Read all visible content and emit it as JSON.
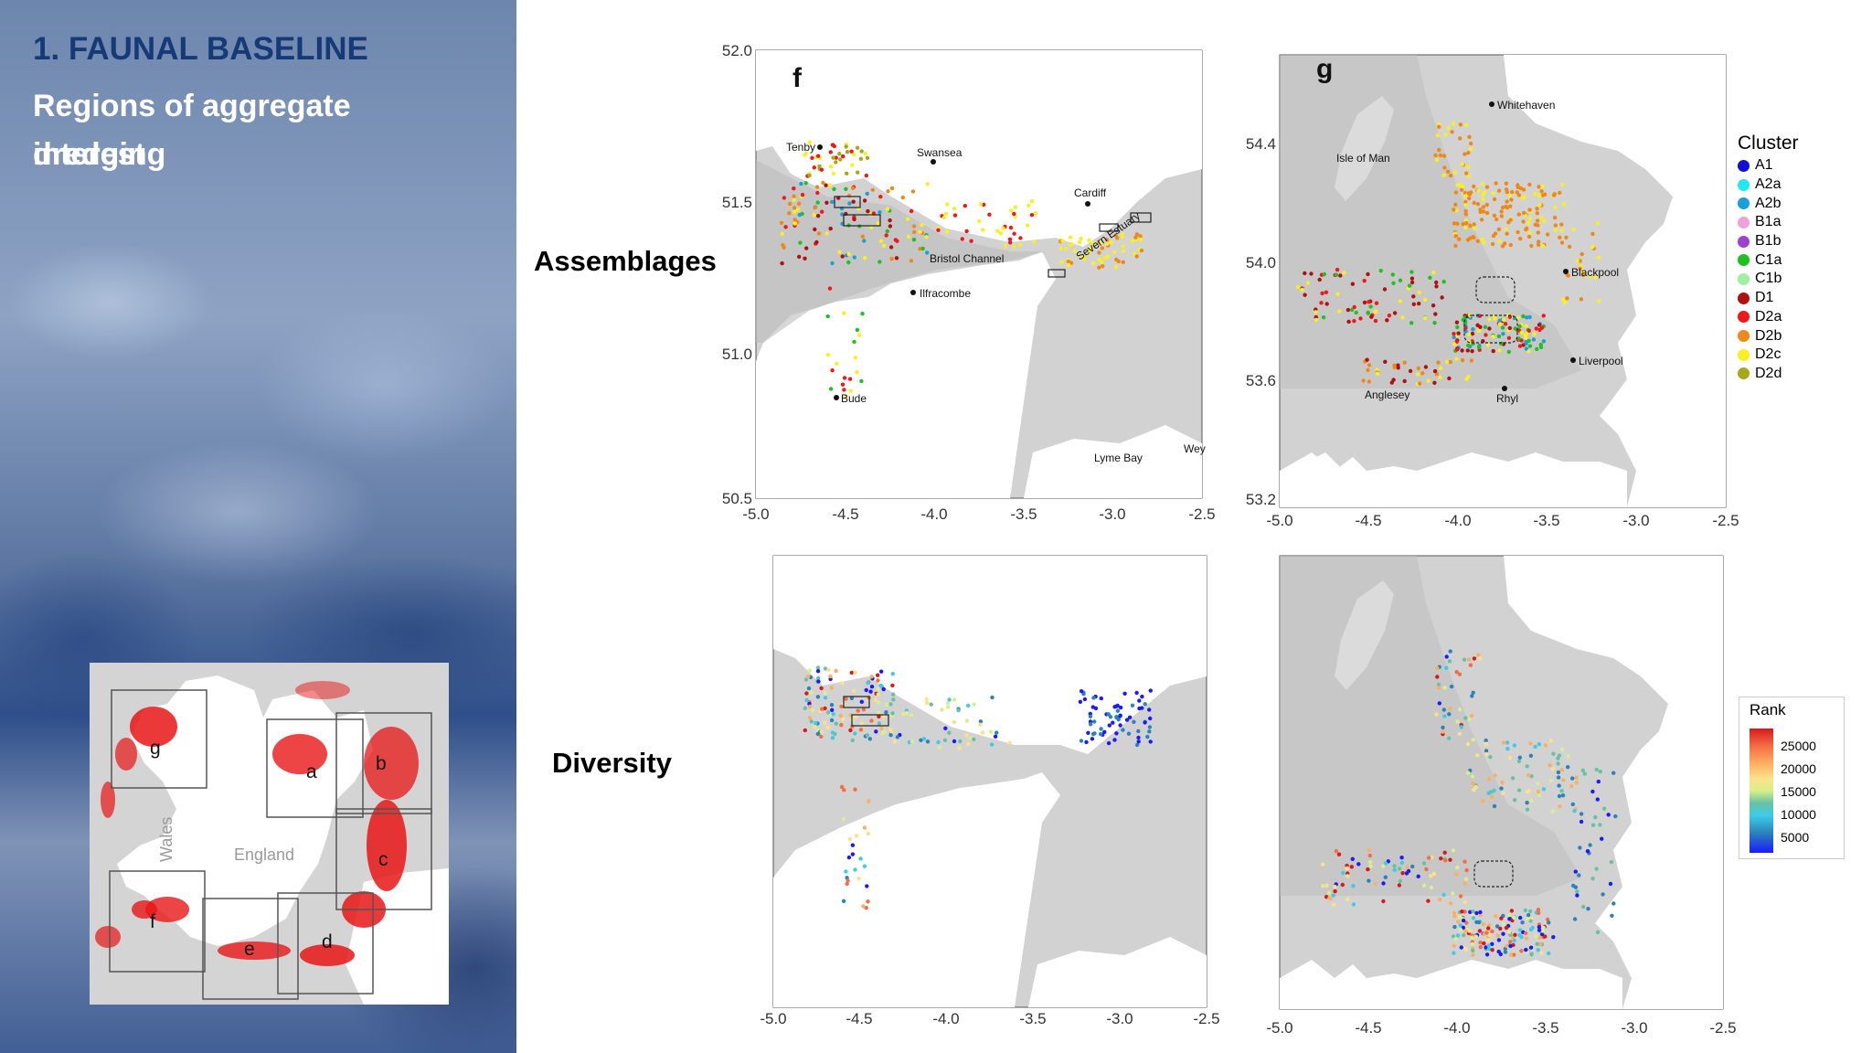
{
  "sidebar": {
    "title": "1. FAUNAL BASELINE",
    "subtitle_line1": "Regions of aggregate dredging",
    "subtitle_line2": "interest",
    "inset_map": {
      "box_labels": [
        "g",
        "a",
        "b",
        "c",
        "f",
        "e",
        "d"
      ],
      "country_labels": [
        "Wales",
        "England"
      ]
    }
  },
  "rows": {
    "assemblages": "Assemblages",
    "diversity": "Diversity"
  },
  "panels": {
    "f": {
      "label": "f",
      "x_ticks": [
        "-5.0",
        "-4.5",
        "-4.0",
        "-3.5",
        "-3.0",
        "-2.5"
      ],
      "y_ticks": [
        "52.0",
        "51.5",
        "51.0",
        "50.5"
      ],
      "places": [
        "Tenby",
        "Swansea",
        "Cardiff",
        "Severn Estuary",
        "Bristol Channel",
        "Ilfracombe",
        "Bude",
        "Lyme Bay",
        "Wey"
      ]
    },
    "g": {
      "label": "g",
      "x_ticks": [
        "-5.0",
        "-4.5",
        "-4.0",
        "-3.5",
        "-3.0",
        "-2.5"
      ],
      "y_ticks": [
        "54.4",
        "54.0",
        "53.6",
        "53.2"
      ],
      "places": [
        "Whitehaven",
        "Isle of Man",
        "Blackpool",
        "Liverpool",
        "Anglesey",
        "Rhyl"
      ]
    },
    "f_div": {
      "x_ticks": [
        "-5.0",
        "-4.5",
        "-4.0",
        "-3.5",
        "-3.0",
        "-2.5"
      ]
    },
    "g_div": {
      "x_ticks": [
        "-5.0",
        "-4.5",
        "-4.0",
        "-3.5",
        "-3.0",
        "-2.5"
      ]
    }
  },
  "cluster_legend": {
    "title": "Cluster",
    "items": [
      {
        "label": "A1",
        "color": "#1010d8"
      },
      {
        "label": "A2a",
        "color": "#20e8f0"
      },
      {
        "label": "A2b",
        "color": "#1aa0d8"
      },
      {
        "label": "B1a",
        "color": "#f0a0e0"
      },
      {
        "label": "B1b",
        "color": "#a040d0"
      },
      {
        "label": "C1a",
        "color": "#20c020"
      },
      {
        "label": "C1b",
        "color": "#a0f0a0"
      },
      {
        "label": "D1",
        "color": "#b01010"
      },
      {
        "label": "D2a",
        "color": "#f01818"
      },
      {
        "label": "D2b",
        "color": "#f08818"
      },
      {
        "label": "D2c",
        "color": "#f8f020"
      },
      {
        "label": "D2d",
        "color": "#a8a818"
      }
    ]
  },
  "rank_legend": {
    "title": "Rank",
    "values": [
      "25000",
      "20000",
      "15000",
      "10000",
      "5000"
    ]
  }
}
